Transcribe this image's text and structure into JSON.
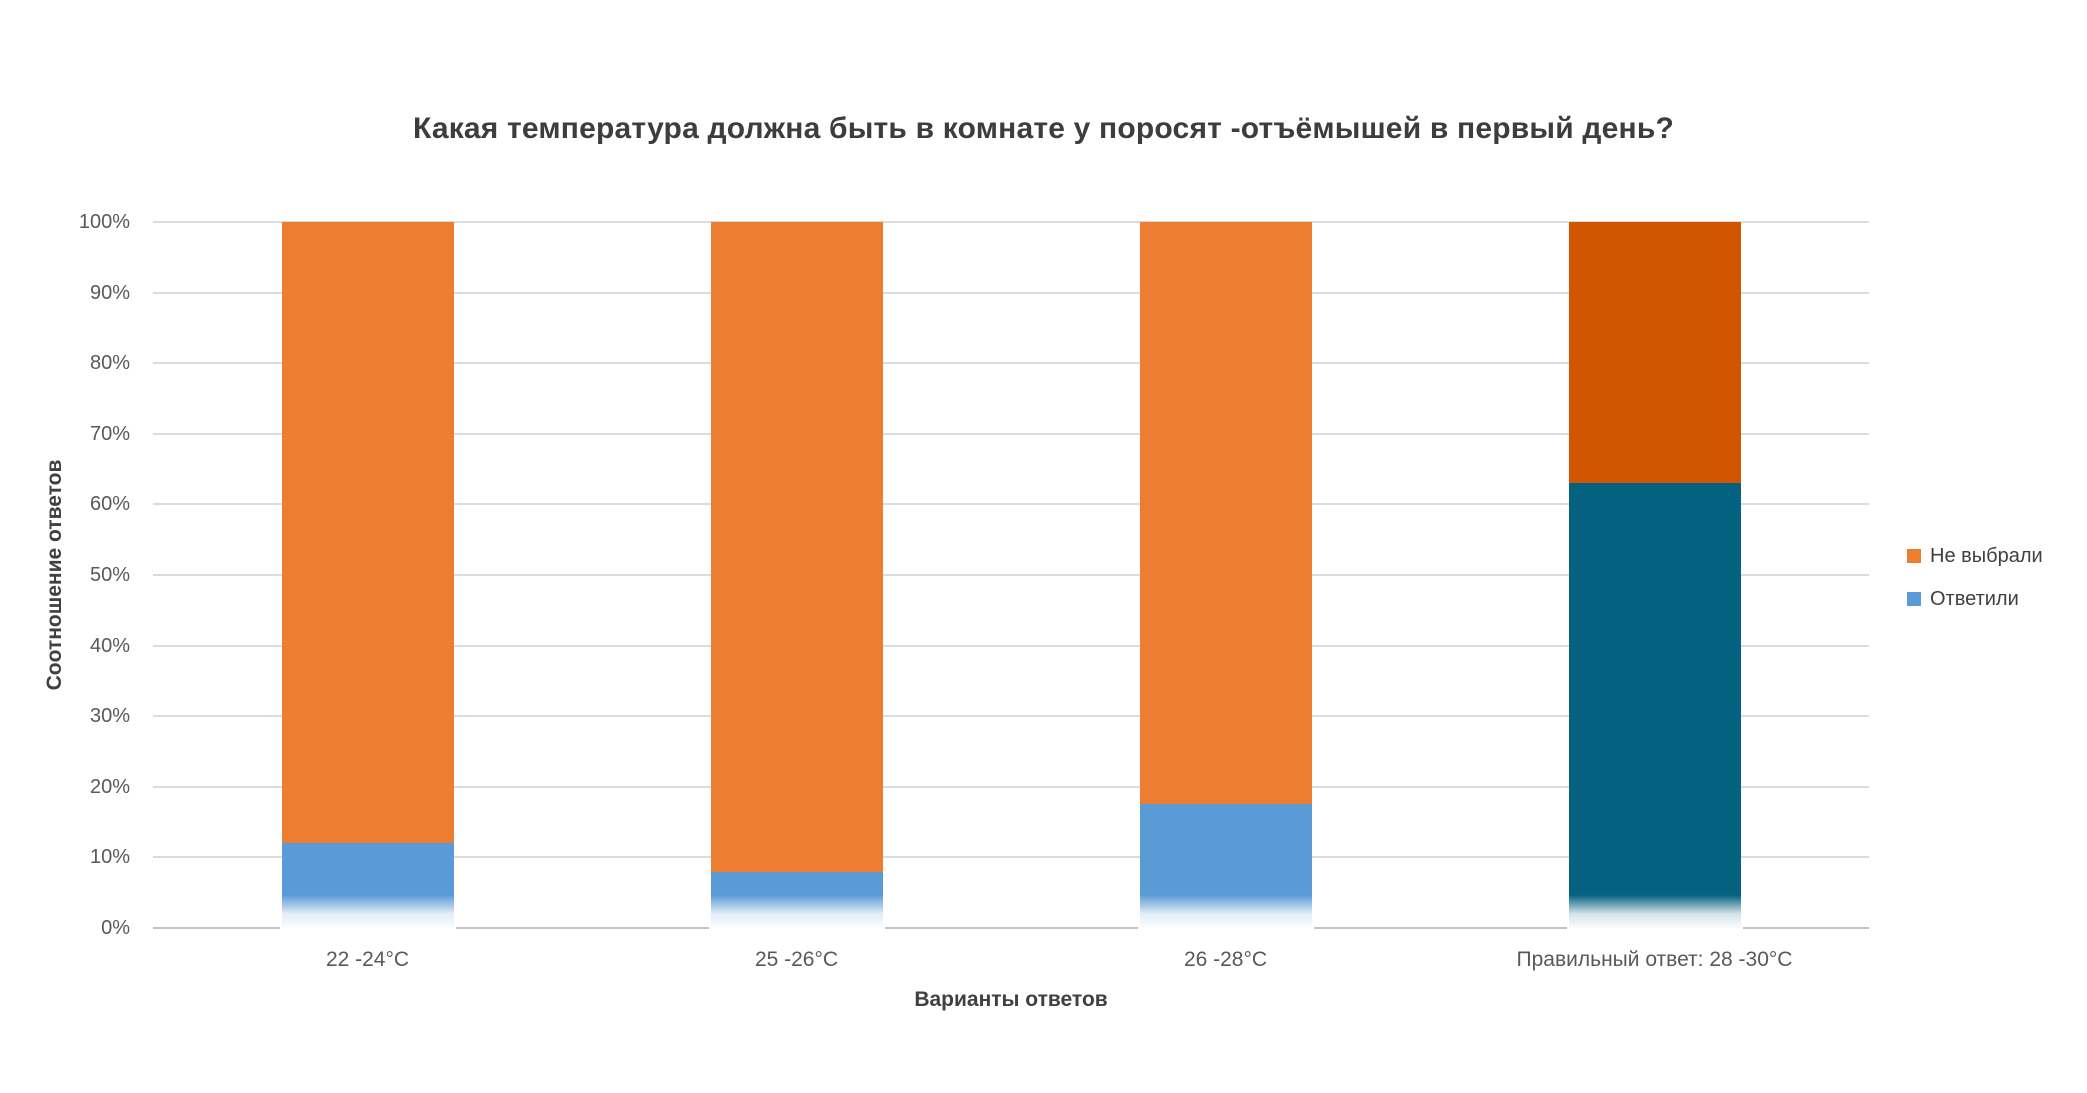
{
  "chart_data": {
    "type": "bar",
    "stacked": true,
    "percent_stacked": true,
    "title": "Какая температура должна быть в комнате у поросят -отъёмышей в первый день?",
    "xlabel": "Варианты ответов",
    "ylabel": "Соотношение ответов",
    "categories": [
      "22 -24°C",
      "25 -26°C",
      "26 -28°C",
      "Правильный ответ: 28 -30°C"
    ],
    "series": [
      {
        "name": "Ответили",
        "values": [
          12,
          8,
          17.5,
          63
        ],
        "color": "#5B9BD5",
        "highlight_color": "#056180"
      },
      {
        "name": "Не выбрали",
        "values": [
          88,
          92,
          82.5,
          37
        ],
        "color": "#ED7D31",
        "highlight_color": "#D25602"
      }
    ],
    "highlight_index": 3,
    "legend": [
      "Не выбрали",
      "Ответили"
    ],
    "legend_position": "right",
    "ylim": [
      0,
      100
    ],
    "y_tick_step": 10,
    "y_ticks": [
      "100%",
      "90%",
      "80%",
      "70%",
      "60%",
      "50%",
      "40%",
      "30%",
      "20%",
      "10%",
      "0%"
    ],
    "grid": true
  }
}
